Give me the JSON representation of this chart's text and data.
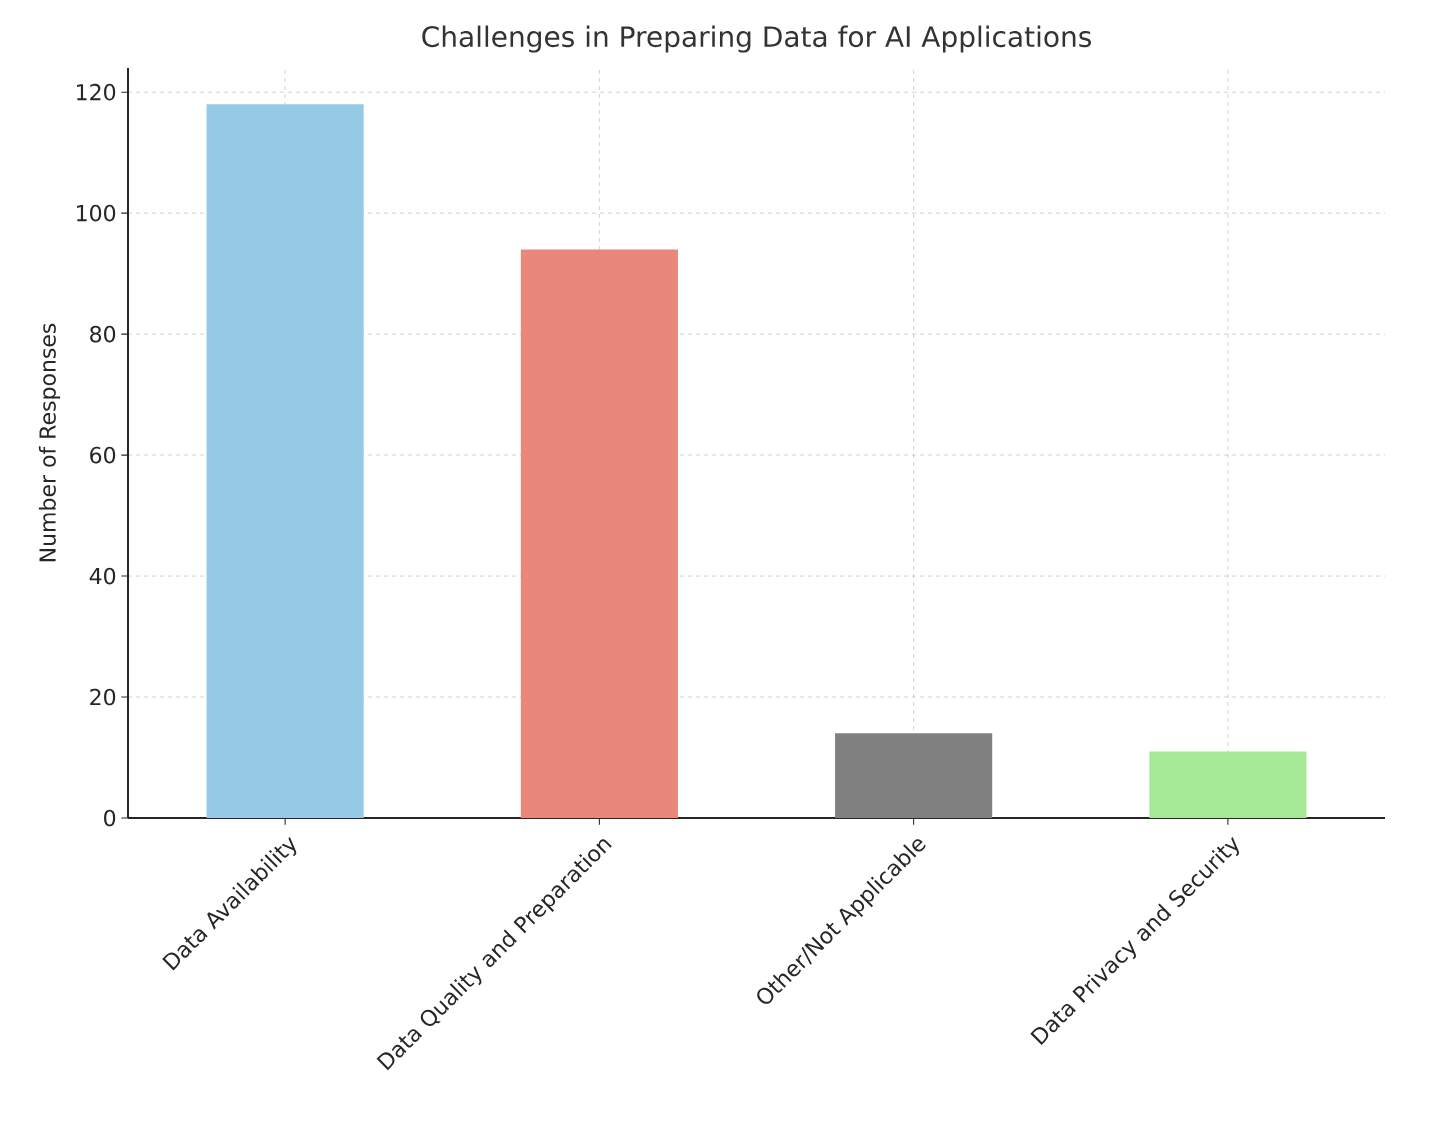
{
  "chart_data": {
    "type": "bar",
    "title": "Challenges in Preparing Data for AI Applications",
    "ylabel": "Number of Responses",
    "categories": [
      "Data Availability",
      "Data Quality and Preparation",
      "Other/Not Applicable",
      "Data Privacy and Security"
    ],
    "values": [
      118,
      94,
      14,
      11
    ],
    "colors": [
      "#95cae6",
      "#e9877a",
      "#808080",
      "#a5e996"
    ],
    "ylim": [
      0,
      124
    ],
    "yticks": [
      0,
      20,
      40,
      60,
      80,
      100,
      120
    ],
    "grid": true
  }
}
